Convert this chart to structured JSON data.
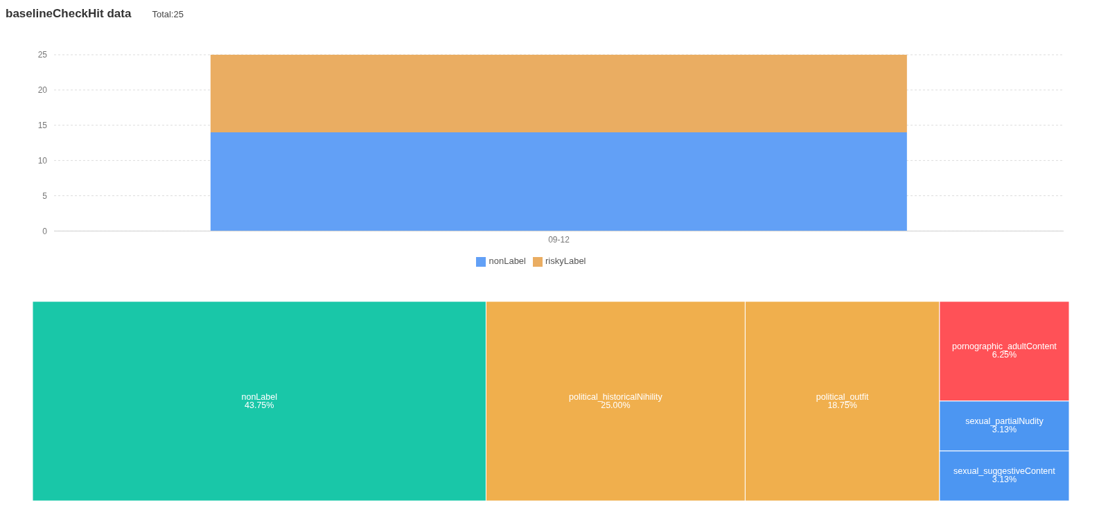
{
  "chart_data": [
    {
      "type": "bar",
      "title": "baselineCheckHit data",
      "subtitle": "Total:25",
      "categories": [
        "09-12"
      ],
      "stacked": true,
      "series": [
        {
          "name": "nonLabel",
          "color": "#62a0f6",
          "values": [
            14
          ]
        },
        {
          "name": "riskyLabel",
          "color": "#eaad62",
          "values": [
            11
          ]
        }
      ],
      "ylim": [
        0,
        25
      ],
      "yticks": [
        0,
        5,
        10,
        15,
        20,
        25
      ],
      "grid": "y",
      "legend": "bottom"
    },
    {
      "type": "other",
      "categories": [
        "nonLabel",
        "political_historicalNihility",
        "political_outfit",
        "pornographic_adultContent",
        "sexual_partialNudity",
        "sexual_suggestiveContent"
      ],
      "values": [
        43.75,
        25.0,
        18.75,
        6.25,
        3.13,
        3.13
      ],
      "value_labels": [
        "43.75%",
        "25.00%",
        "18.75%",
        "6.25%",
        "3.13%",
        "3.13%"
      ],
      "colors": [
        "#19c7a8",
        "#f0af4d",
        "#f0af4d",
        "#ff5157",
        "#4c96f2",
        "#4c96f2"
      ]
    }
  ]
}
